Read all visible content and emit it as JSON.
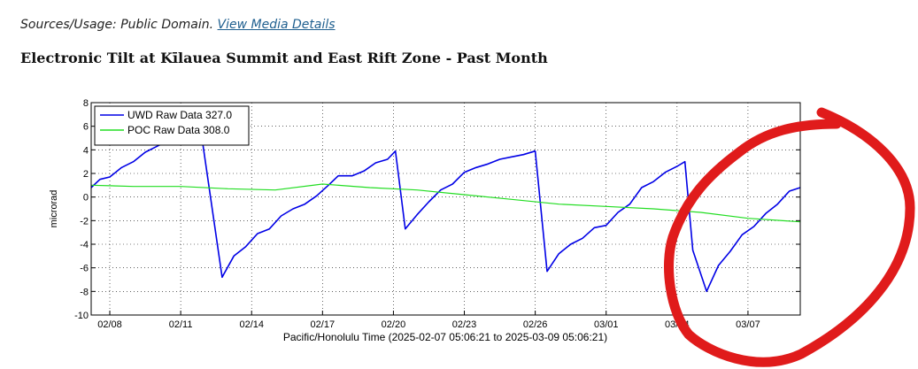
{
  "source": {
    "text": "Sources/Usage: Public Domain.",
    "link_label": "View Media Details"
  },
  "section_title": "Electronic Tilt at Kīlauea Summit and East Rift Zone - Past Month",
  "annotation_color": "#e01b1b",
  "chart_data": {
    "type": "line",
    "title": "",
    "xlabel": "Pacific/Honolulu Time (2025-02-07 05:06:21 to 2025-03-09 05:06:21)",
    "ylabel": "microrad",
    "xlim": [
      "2025-02-07T05:06",
      "2025-03-09T05:06"
    ],
    "ylim": [
      -10,
      8
    ],
    "yticks": [
      8,
      6,
      4,
      2,
      0,
      -2,
      -4,
      -6,
      -8,
      -10
    ],
    "xticks": [
      {
        "date": "2025-02-08",
        "label": "02/08"
      },
      {
        "date": "2025-02-11",
        "label": "02/11"
      },
      {
        "date": "2025-02-14",
        "label": "02/14"
      },
      {
        "date": "2025-02-17",
        "label": "02/17"
      },
      {
        "date": "2025-02-20",
        "label": "02/20"
      },
      {
        "date": "2025-02-23",
        "label": "02/23"
      },
      {
        "date": "2025-02-26",
        "label": "02/26"
      },
      {
        "date": "2025-03-01",
        "label": "03/01"
      },
      {
        "date": "2025-03-04",
        "label": "03/04"
      },
      {
        "date": "2025-03-07",
        "label": "03/07"
      }
    ],
    "grid": true,
    "legend": "top-left",
    "series": [
      {
        "name": "UWD Raw Data 327.0",
        "color": "#0000e6",
        "points": [
          [
            "2025-02-07T05:06",
            0.8
          ],
          [
            "2025-02-07T14:00",
            1.5
          ],
          [
            "2025-02-08T00:00",
            1.7
          ],
          [
            "2025-02-08T12:00",
            2.5
          ],
          [
            "2025-02-09T00:00",
            3.0
          ],
          [
            "2025-02-09T12:00",
            3.8
          ],
          [
            "2025-02-10T00:00",
            4.3
          ],
          [
            "2025-02-10T12:00",
            4.8
          ],
          [
            "2025-02-11T00:00",
            5.4
          ],
          [
            "2025-02-11T12:00",
            5.7
          ],
          [
            "2025-02-11T20:00",
            5.9
          ],
          [
            "2025-02-12T18:00",
            -6.8
          ],
          [
            "2025-02-13T06:00",
            -5.0
          ],
          [
            "2025-02-13T18:00",
            -4.2
          ],
          [
            "2025-02-14T06:00",
            -3.1
          ],
          [
            "2025-02-14T18:00",
            -2.7
          ],
          [
            "2025-02-15T06:00",
            -1.6
          ],
          [
            "2025-02-15T18:00",
            -1.0
          ],
          [
            "2025-02-16T06:00",
            -0.6
          ],
          [
            "2025-02-16T18:00",
            0.1
          ],
          [
            "2025-02-17T06:00",
            1.0
          ],
          [
            "2025-02-17T16:00",
            1.8
          ],
          [
            "2025-02-18T06:00",
            1.8
          ],
          [
            "2025-02-18T18:00",
            2.2
          ],
          [
            "2025-02-19T06:00",
            2.9
          ],
          [
            "2025-02-19T18:00",
            3.2
          ],
          [
            "2025-02-20T02:00",
            3.9
          ],
          [
            "2025-02-20T12:00",
            -2.7
          ],
          [
            "2025-02-21T00:00",
            -1.5
          ],
          [
            "2025-02-21T12:00",
            -0.4
          ],
          [
            "2025-02-22T00:00",
            0.6
          ],
          [
            "2025-02-22T12:00",
            1.1
          ],
          [
            "2025-02-23T00:00",
            2.1
          ],
          [
            "2025-02-23T12:00",
            2.5
          ],
          [
            "2025-02-24T00:00",
            2.8
          ],
          [
            "2025-02-24T12:00",
            3.2
          ],
          [
            "2025-02-25T00:00",
            3.4
          ],
          [
            "2025-02-25T12:00",
            3.6
          ],
          [
            "2025-02-26T00:00",
            3.9
          ],
          [
            "2025-02-26T12:00",
            -6.3
          ],
          [
            "2025-02-27T00:00",
            -4.8
          ],
          [
            "2025-02-27T12:00",
            -4.0
          ],
          [
            "2025-02-28T00:00",
            -3.5
          ],
          [
            "2025-02-28T12:00",
            -2.6
          ],
          [
            "2025-03-01T00:00",
            -2.4
          ],
          [
            "2025-03-01T12:00",
            -1.3
          ],
          [
            "2025-03-02T00:00",
            -0.6
          ],
          [
            "2025-03-02T12:00",
            0.8
          ],
          [
            "2025-03-03T00:00",
            1.3
          ],
          [
            "2025-03-03T12:00",
            2.1
          ],
          [
            "2025-03-04T00:00",
            2.6
          ],
          [
            "2025-03-04T08:00",
            3.0
          ],
          [
            "2025-03-04T16:00",
            -4.5
          ],
          [
            "2025-03-05T06:00",
            -8.0
          ],
          [
            "2025-03-05T18:00",
            -5.8
          ],
          [
            "2025-03-06T06:00",
            -4.6
          ],
          [
            "2025-03-06T18:00",
            -3.2
          ],
          [
            "2025-03-07T06:00",
            -2.5
          ],
          [
            "2025-03-07T18:00",
            -1.4
          ],
          [
            "2025-03-08T06:00",
            -0.6
          ],
          [
            "2025-03-08T18:00",
            0.5
          ],
          [
            "2025-03-09T05:06",
            0.8
          ]
        ]
      },
      {
        "name": "POC Raw Data 308.0",
        "color": "#22dd22",
        "points": [
          [
            "2025-02-07T05:06",
            1.0
          ],
          [
            "2025-02-09T00:00",
            0.9
          ],
          [
            "2025-02-11T00:00",
            0.9
          ],
          [
            "2025-02-13T00:00",
            0.7
          ],
          [
            "2025-02-15T00:00",
            0.6
          ],
          [
            "2025-02-17T00:00",
            1.1
          ],
          [
            "2025-02-19T00:00",
            0.8
          ],
          [
            "2025-02-21T00:00",
            0.6
          ],
          [
            "2025-02-23T00:00",
            0.2
          ],
          [
            "2025-02-25T00:00",
            -0.2
          ],
          [
            "2025-02-27T00:00",
            -0.6
          ],
          [
            "2025-03-01T00:00",
            -0.8
          ],
          [
            "2025-03-03T00:00",
            -1.0
          ],
          [
            "2025-03-05T00:00",
            -1.3
          ],
          [
            "2025-03-07T00:00",
            -1.8
          ],
          [
            "2025-03-09T05:06",
            -2.1
          ]
        ]
      }
    ]
  }
}
